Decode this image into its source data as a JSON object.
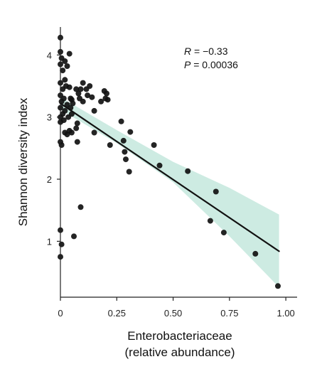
{
  "chart_data": {
    "type": "scatter",
    "title": "",
    "xlabel_line1": "Enterobacteriaceae",
    "xlabel_line2": "(relative abundance)",
    "ylabel": "Shannon diversity index",
    "xlim": [
      0,
      1.05
    ],
    "ylim": [
      0.1,
      4.45
    ],
    "x_ticks": [
      0,
      0.25,
      0.5,
      0.75,
      1.0
    ],
    "x_tick_labels": [
      "0",
      "0.25",
      "0.50",
      "0.75",
      "1.00"
    ],
    "y_ticks": [
      1,
      2,
      3,
      4
    ],
    "y_tick_labels": [
      "1",
      "2",
      "3",
      "4"
    ],
    "grid": false,
    "annotation": {
      "r_label": "R",
      "r_value": " = −0.33",
      "p_label": "P",
      "p_value": " = 0.00036"
    },
    "regression": {
      "start": [
        0,
        3.22
      ],
      "end": [
        0.97,
        0.84
      ],
      "ci_upper": [
        [
          0,
          3.32
        ],
        [
          0.25,
          2.79
        ],
        [
          0.5,
          2.28
        ],
        [
          0.75,
          1.86
        ],
        [
          0.97,
          1.43
        ]
      ],
      "ci_lower": [
        [
          0,
          3.12
        ],
        [
          0.25,
          2.58
        ],
        [
          0.5,
          1.95
        ],
        [
          0.75,
          1.08
        ],
        [
          0.97,
          0.26
        ]
      ]
    },
    "colors": {
      "point": "#111111",
      "line": "#111111",
      "ci": "#cdebe2"
    },
    "points": [
      {
        "x": 0.0,
        "y": 4.28
      },
      {
        "x": 0.0,
        "y": 4.05
      },
      {
        "x": 0.005,
        "y": 3.95
      },
      {
        "x": 0.0,
        "y": 3.85
      },
      {
        "x": 0.01,
        "y": 3.75
      },
      {
        "x": 0.02,
        "y": 3.9
      },
      {
        "x": 0.03,
        "y": 3.82
      },
      {
        "x": 0.04,
        "y": 4.02
      },
      {
        "x": 0.02,
        "y": 3.6
      },
      {
        "x": 0.0,
        "y": 3.55
      },
      {
        "x": 0.01,
        "y": 3.45
      },
      {
        "x": 0.025,
        "y": 3.5
      },
      {
        "x": 0.04,
        "y": 3.48
      },
      {
        "x": 0.0,
        "y": 3.35
      },
      {
        "x": 0.005,
        "y": 3.25
      },
      {
        "x": 0.015,
        "y": 3.3
      },
      {
        "x": 0.03,
        "y": 3.2
      },
      {
        "x": 0.045,
        "y": 3.3
      },
      {
        "x": 0.05,
        "y": 3.28
      },
      {
        "x": 0.0,
        "y": 3.15
      },
      {
        "x": 0.01,
        "y": 3.05
      },
      {
        "x": 0.02,
        "y": 3.1
      },
      {
        "x": 0.035,
        "y": 3.0
      },
      {
        "x": 0.045,
        "y": 3.15
      },
      {
        "x": 0.05,
        "y": 3.05
      },
      {
        "x": 0.055,
        "y": 3.22
      },
      {
        "x": 0.0,
        "y": 3.0
      },
      {
        "x": 0.0,
        "y": 2.92
      },
      {
        "x": 0.015,
        "y": 2.95
      },
      {
        "x": 0.02,
        "y": 2.75
      },
      {
        "x": 0.03,
        "y": 2.72
      },
      {
        "x": 0.04,
        "y": 2.78
      },
      {
        "x": 0.05,
        "y": 2.75
      },
      {
        "x": 0.0,
        "y": 2.6
      },
      {
        "x": 0.005,
        "y": 2.55
      },
      {
        "x": 0.07,
        "y": 2.82
      },
      {
        "x": 0.075,
        "y": 2.9
      },
      {
        "x": 0.075,
        "y": 2.6
      },
      {
        "x": 0.07,
        "y": 3.45
      },
      {
        "x": 0.08,
        "y": 3.38
      },
      {
        "x": 0.09,
        "y": 3.45
      },
      {
        "x": 0.085,
        "y": 3.3
      },
      {
        "x": 0.1,
        "y": 3.55
      },
      {
        "x": 0.115,
        "y": 3.45
      },
      {
        "x": 0.12,
        "y": 3.35
      },
      {
        "x": 0.13,
        "y": 3.5
      },
      {
        "x": 0.1,
        "y": 3.25
      },
      {
        "x": 0.14,
        "y": 3.32
      },
      {
        "x": 0.15,
        "y": 3.1
      },
      {
        "x": 0.15,
        "y": 2.75
      },
      {
        "x": 0.18,
        "y": 3.25
      },
      {
        "x": 0.195,
        "y": 3.42
      },
      {
        "x": 0.2,
        "y": 3.3
      },
      {
        "x": 0.205,
        "y": 3.38
      },
      {
        "x": 0.21,
        "y": 3.28
      },
      {
        "x": 0.22,
        "y": 2.55
      },
      {
        "x": 0.27,
        "y": 2.93
      },
      {
        "x": 0.28,
        "y": 2.62
      },
      {
        "x": 0.285,
        "y": 2.44
      },
      {
        "x": 0.29,
        "y": 2.32
      },
      {
        "x": 0.31,
        "y": 2.76
      },
      {
        "x": 0.305,
        "y": 2.12
      },
      {
        "x": 0.09,
        "y": 1.55
      },
      {
        "x": 0.0,
        "y": 1.18
      },
      {
        "x": 0.005,
        "y": 0.95
      },
      {
        "x": 0.06,
        "y": 1.08
      },
      {
        "x": 0.0,
        "y": 0.75
      },
      {
        "x": 0.415,
        "y": 2.55
      },
      {
        "x": 0.44,
        "y": 2.22
      },
      {
        "x": 0.565,
        "y": 2.13
      },
      {
        "x": 0.69,
        "y": 1.8
      },
      {
        "x": 0.665,
        "y": 1.33
      },
      {
        "x": 0.725,
        "y": 1.14
      },
      {
        "x": 0.865,
        "y": 0.8
      },
      {
        "x": 0.965,
        "y": 0.28
      }
    ]
  }
}
